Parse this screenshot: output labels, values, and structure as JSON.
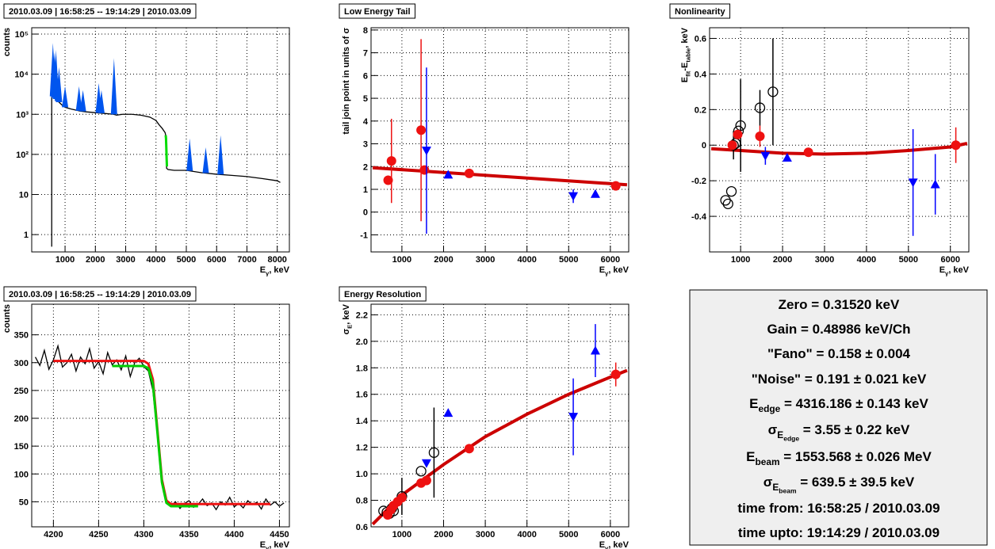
{
  "chart_data": [
    {
      "type": "line",
      "title": "2010.03.09 | 16:58:25 -- 19:14:29 | 2010.03.09",
      "log_y": true,
      "grid": true,
      "xlabel": [
        {
          "text": "E",
          "sub": "γ"
        },
        {
          "text": ", keV"
        }
      ],
      "ylabel": "counts",
      "xlim": [
        -100,
        8400
      ],
      "ylim": [
        0.37,
        144000
      ],
      "xticks": [
        1000,
        2000,
        3000,
        4000,
        5000,
        6000,
        7000,
        8000
      ],
      "yticks": [
        1,
        10,
        {
          "value": 100,
          "label": "10²"
        },
        {
          "value": 1000,
          "label": "10³"
        },
        {
          "value": 10000,
          "label": "10⁴"
        },
        {
          "value": 100000,
          "label": "10⁵"
        }
      ],
      "series": [
        {
          "style": "line",
          "color": "#000000",
          "x": [
            560,
            560,
            600,
            700,
            800,
            900,
            1000,
            1200,
            1400,
            1500,
            1700,
            2000,
            2300,
            2600,
            2700,
            2900,
            3200,
            3500,
            3800,
            4000,
            4100,
            4200,
            4300,
            4320,
            4350,
            4400,
            4600,
            5000,
            5500,
            6000,
            6500,
            7000,
            7500,
            8000,
            8100
          ],
          "values": [
            0.5,
            3000,
            2800,
            2400,
            2000,
            1700,
            1500,
            1350,
            1250,
            1200,
            1150,
            1100,
            1050,
            1000,
            950,
            1000,
            1000,
            950,
            850,
            700,
            550,
            450,
            350,
            300,
            45,
            42,
            40,
            40,
            35,
            32,
            30,
            28,
            25,
            22,
            20
          ]
        },
        {
          "style": "line",
          "color": "#00dd00",
          "x": [
            4320,
            4330,
            4340,
            4350,
            4360
          ],
          "values": [
            300,
            250,
            150,
            80,
            50
          ]
        },
        {
          "style": "spikes",
          "color": "#0055ee",
          "x": [
            600,
            650,
            700,
            760,
            800,
            1000,
            1460,
            1590,
            2110,
            2200,
            2615,
            5110,
            5640,
            6130
          ],
          "values": [
            60000,
            35000,
            40000,
            8000,
            15000,
            5000,
            5000,
            4000,
            6000,
            4000,
            25000,
            250,
            150,
            300
          ]
        }
      ]
    },
    {
      "type": "scatter",
      "title": "Low Energy Tail",
      "grid": true,
      "xlabel": [
        {
          "text": "E",
          "sub": "γ"
        },
        {
          "text": ", keV"
        }
      ],
      "ylabel": "tail join point in units of σ",
      "xlim": [
        260,
        6440
      ],
      "ylim": [
        -1.75,
        8.1
      ],
      "xticks": [
        1000,
        2000,
        3000,
        4000,
        5000,
        6000
      ],
      "yticks": [
        -1,
        0,
        1,
        2,
        3,
        4,
        5,
        6,
        7,
        8
      ],
      "series": [
        {
          "style": "line",
          "color": "#cc0000",
          "x": [
            300,
            6400
          ],
          "values": [
            1.95,
            1.2
          ]
        },
        {
          "style": "circle",
          "color": "#ee1111",
          "x": [
            670,
            750,
            1460,
            1540,
            2615,
            6130
          ],
          "values": [
            1.4,
            2.25,
            3.6,
            1.85,
            1.7,
            1.15
          ],
          "errors": [
            null,
            1.85,
            4.0,
            null,
            null,
            null
          ]
        },
        {
          "style": "triangle-down",
          "color": "#0000ff",
          "x": [
            1590,
            5110
          ],
          "values": [
            2.7,
            0.7
          ],
          "errors": [
            3.65,
            0.3
          ]
        },
        {
          "style": "triangle-up",
          "color": "#0000ff",
          "x": [
            2110,
            5640
          ],
          "values": [
            1.65,
            0.8
          ],
          "errors": [
            null,
            null
          ]
        }
      ]
    },
    {
      "type": "scatter",
      "title": "Nonlinearity",
      "grid": true,
      "xlabel": [
        {
          "text": "E",
          "sub": "γ"
        },
        {
          "text": ", keV"
        }
      ],
      "ylabel": [
        {
          "text": "E",
          "sub": "fit"
        },
        {
          "text": "-E",
          "sub": "table"
        },
        {
          "text": ", keV"
        }
      ],
      "xlim": [
        260,
        6440
      ],
      "ylim": [
        -0.6,
        0.66
      ],
      "xticks": [
        1000,
        2000,
        3000,
        4000,
        5000,
        6000
      ],
      "yticks": [
        -0.4,
        -0.2,
        0,
        0.2,
        0.4,
        0.6
      ],
      "series": [
        {
          "style": "line",
          "color": "#cc0000",
          "x": [
            300,
            1000,
            2000,
            3000,
            4000,
            5000,
            6000,
            6400
          ],
          "values": [
            -0.02,
            -0.03,
            -0.045,
            -0.05,
            -0.045,
            -0.03,
            -0.01,
            0.01
          ]
        },
        {
          "style": "circle-open",
          "color": "#000000",
          "x": [
            640,
            700,
            780,
            830,
            880,
            950,
            1000,
            1460,
            1770
          ],
          "values": [
            -0.31,
            -0.33,
            -0.26,
            0.0,
            0.01,
            0.08,
            0.11,
            0.21,
            0.3
          ],
          "errors": [
            null,
            null,
            null,
            0.08,
            null,
            null,
            0.26,
            0.1,
            0.3
          ]
        },
        {
          "style": "circle",
          "color": "#ee1111",
          "x": [
            800,
            930,
            1460,
            2615,
            6130
          ],
          "values": [
            0.0,
            0.06,
            0.05,
            -0.04,
            0.0
          ],
          "errors": [
            null,
            null,
            0.06,
            null,
            0.1
          ]
        },
        {
          "style": "triangle-down",
          "color": "#0000ff",
          "x": [
            1590,
            5110
          ],
          "values": [
            -0.06,
            -0.21
          ],
          "errors": [
            0.05,
            0.3
          ]
        },
        {
          "style": "triangle-up",
          "color": "#0000ff",
          "x": [
            2110,
            5640
          ],
          "values": [
            -0.07,
            -0.22
          ],
          "errors": [
            null,
            0.17
          ]
        }
      ]
    },
    {
      "type": "line",
      "title": "2010.03.09 | 16:58:25 -- 19:14:29 | 2010.03.09",
      "grid": true,
      "xlabel": [
        {
          "text": "E",
          "sub": "γ"
        },
        {
          "text": ", keV"
        }
      ],
      "ylabel": "counts",
      "xlim": [
        4176,
        4461
      ],
      "ylim": [
        5,
        405
      ],
      "xticks": [
        4200,
        4250,
        4300,
        4350,
        4400,
        4450
      ],
      "yticks": [
        50,
        100,
        150,
        200,
        250,
        300,
        350
      ],
      "series": [
        {
          "style": "line",
          "color": "#000000",
          "x": [
            4180,
            4185,
            4190,
            4195,
            4200,
            4205,
            4210,
            4215,
            4220,
            4225,
            4230,
            4235,
            4240,
            4245,
            4250,
            4255,
            4260,
            4265,
            4270,
            4275,
            4280,
            4285,
            4290,
            4295,
            4300,
            4305,
            4310,
            4315,
            4320,
            4325,
            4330,
            4335,
            4340,
            4345,
            4350,
            4355,
            4360,
            4365,
            4370,
            4375,
            4380,
            4385,
            4390,
            4395,
            4400,
            4405,
            4410,
            4415,
            4420,
            4425,
            4430,
            4435,
            4440,
            4445,
            4450,
            4455
          ],
          "values": [
            310,
            295,
            322,
            288,
            305,
            330,
            292,
            300,
            315,
            285,
            310,
            298,
            325,
            290,
            302,
            280,
            318,
            296,
            305,
            287,
            312,
            275,
            300,
            308,
            293,
            285,
            250,
            170,
            90,
            55,
            42,
            50,
            38,
            47,
            52,
            40,
            45,
            55,
            43,
            48,
            36,
            50,
            44,
            58,
            41,
            47,
            39,
            52,
            45,
            49,
            37,
            55,
            44,
            50,
            42,
            48
          ]
        },
        {
          "style": "line",
          "color": "#ee1111",
          "x": [
            4200,
            4300,
            4305,
            4310,
            4315,
            4320,
            4325,
            4330,
            4440
          ],
          "values": [
            303,
            303,
            298,
            270,
            180,
            90,
            52,
            46,
            46
          ]
        },
        {
          "style": "line",
          "color": "#00cc00",
          "x": [
            4265,
            4300,
            4305,
            4310,
            4315,
            4320,
            4325,
            4330,
            4360
          ],
          "values": [
            294,
            294,
            290,
            262,
            175,
            85,
            48,
            42,
            42
          ]
        }
      ]
    },
    {
      "type": "scatter",
      "title": "Energy Resolution",
      "grid": true,
      "xlabel": [
        {
          "text": "E",
          "sub": "γ"
        },
        {
          "text": ", keV"
        }
      ],
      "ylabel": [
        {
          "text": "σ",
          "sub": "E"
        },
        {
          "text": ", keV"
        }
      ],
      "xlim": [
        260,
        6440
      ],
      "ylim": [
        0.6,
        2.28
      ],
      "xticks": [
        1000,
        2000,
        3000,
        4000,
        5000,
        6000
      ],
      "yticks": [
        0.6,
        0.8,
        {
          "value": 1,
          "label": "1.0"
        },
        1.2,
        1.4,
        1.6,
        1.8,
        {
          "value": 2,
          "label": "2.0"
        },
        2.2
      ],
      "series": [
        {
          "style": "line",
          "color": "#cc0000",
          "x": [
            300,
            1000,
            2000,
            3000,
            4000,
            5000,
            6000,
            6400
          ],
          "values": [
            0.62,
            0.84,
            1.07,
            1.28,
            1.45,
            1.6,
            1.73,
            1.78
          ]
        },
        {
          "style": "circle-open",
          "color": "#000000",
          "x": [
            560,
            640,
            700,
            760,
            800,
            1000,
            1460,
            1770
          ],
          "values": [
            0.72,
            0.71,
            0.7,
            0.74,
            0.72,
            0.83,
            1.02,
            1.16
          ],
          "errors": [
            null,
            null,
            null,
            null,
            null,
            0.14,
            null,
            0.34
          ]
        },
        {
          "style": "circle",
          "color": "#ee1111",
          "x": [
            660,
            740,
            800,
            900,
            1000,
            1460,
            1590,
            2615,
            6130
          ],
          "values": [
            0.69,
            0.73,
            0.76,
            0.79,
            0.82,
            0.93,
            0.95,
            1.19,
            1.75
          ],
          "errors": [
            null,
            null,
            null,
            null,
            null,
            null,
            null,
            null,
            0.09
          ]
        },
        {
          "style": "triangle-down",
          "color": "#0000ff",
          "x": [
            1590,
            5110
          ],
          "values": [
            1.08,
            1.43
          ],
          "errors": [
            null,
            0.29
          ]
        },
        {
          "style": "triangle-up",
          "color": "#0000ff",
          "x": [
            2110,
            5640
          ],
          "values": [
            1.46,
            1.93
          ],
          "errors": [
            null,
            0.2
          ]
        }
      ]
    }
  ],
  "info_box": {
    "lines": [
      [
        {
          "text": "Zero = 0.31520 keV"
        }
      ],
      [
        {
          "text": "Gain = 0.48986 keV/Ch"
        }
      ],
      [
        {
          "text": "\"Fano\" = 0.158 ± 0.004"
        }
      ],
      [
        {
          "text": "\"Noise\" = 0.191 ± 0.021 keV"
        }
      ],
      [
        {
          "text": "E",
          "sub": "edge"
        },
        {
          "text": " = 4316.186 ± 0.143 keV"
        }
      ],
      [
        {
          "text": "σ",
          "sub": "E",
          "subsub": "edge"
        },
        {
          "text": " = 3.55 ± 0.22 keV"
        }
      ],
      [
        {
          "text": "E",
          "sub": "beam"
        },
        {
          "text": " = 1553.568 ± 0.026 MeV"
        }
      ],
      [
        {
          "text": "σ",
          "sub": "E",
          "subsub": "beam"
        },
        {
          "text": " = 639.5 ± 39.5 keV"
        }
      ],
      [
        {
          "text": "time from:  16:58:25 / 2010.03.09"
        }
      ],
      [
        {
          "text": "time upto:  19:14:29 / 2010.03.09"
        }
      ]
    ]
  }
}
